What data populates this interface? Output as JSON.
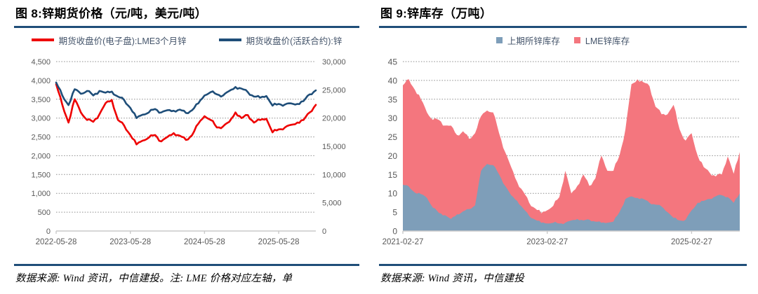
{
  "colors": {
    "accent_rule": "#1F4E79",
    "red_line": "#EE0000",
    "navy_line": "#1F4E79",
    "shfe_area": "#7E9EB9",
    "lme_area": "#F4767E",
    "legend_text": "#44546A",
    "axis_text": "#595959",
    "gridline": "#8C8C8C",
    "axis_line": "#C9C9C9"
  },
  "left_panel": {
    "title": "图 8:锌期货价格（元/吨，美元/吨）",
    "footer": "数据来源: Wind 资讯，中信建投。注: LME 价格对应左轴，单"
  },
  "right_panel": {
    "title": "图 9:锌库存（万吨）",
    "footer": "数据来源: Wind 资讯，中信建投"
  },
  "chart_data": [
    {
      "type": "line",
      "title": "图 8:锌期货价格（元/吨，美元/吨）",
      "x_start": "2022-05-28",
      "x_freq": "monthly",
      "x_tick_labels": [
        "2022-05-28",
        "2023-05-28",
        "2024-05-28",
        "2025-05-28"
      ],
      "x_tick_indices": [
        0,
        12,
        24,
        36
      ],
      "left_axis": {
        "min": 0,
        "max": 4500,
        "step": 500
      },
      "right_axis": {
        "min": 0,
        "max": 30000,
        "step": 5000
      },
      "grid": true,
      "legend_position": "top",
      "series": [
        {
          "name": "期货收盘价(电子盘):LME3个月锌",
          "axis": "left",
          "color": "#EE0000",
          "values": [
            3900,
            3350,
            2880,
            3500,
            3150,
            2950,
            2900,
            3100,
            3400,
            3480,
            2950,
            2800,
            2550,
            2300,
            2400,
            2480,
            2550,
            2380,
            2500,
            2600,
            2530,
            2420,
            2550,
            2850,
            3050,
            2950,
            2750,
            2780,
            2900,
            3150,
            3000,
            3080,
            2880,
            2950,
            2980,
            2620,
            2700,
            2750,
            2820,
            2880,
            2950,
            3150,
            3350
          ]
        },
        {
          "name": "期货收盘价(活跃合约):锌",
          "axis": "right",
          "color": "#1F4E79",
          "values": [
            26300,
            24000,
            22300,
            25100,
            24300,
            24800,
            24000,
            24800,
            24500,
            24700,
            23800,
            23200,
            21800,
            20000,
            20600,
            21000,
            21600,
            21000,
            21400,
            21300,
            21500,
            20900,
            21400,
            22600,
            24000,
            24600,
            24200,
            24000,
            24800,
            25500,
            25200,
            24600,
            23800,
            23600,
            23900,
            22200,
            22500,
            22400,
            22600,
            22500,
            23000,
            24200,
            24900
          ]
        }
      ]
    },
    {
      "type": "area",
      "stacked": true,
      "title": "图 9:锌库存（万吨）",
      "x_start": "2021-02-27",
      "x_freq": "monthly",
      "x_tick_labels": [
        "2021-02-27",
        "2023-02-27",
        "2025-02-27"
      ],
      "x_tick_indices": [
        0,
        24,
        48
      ],
      "y_axis": {
        "min": 0,
        "max": 45,
        "step": 5
      },
      "grid": true,
      "legend_position": "top",
      "series": [
        {
          "name": "上期所锌库存",
          "color": "#7E9EB9",
          "values": [
            12.3,
            11.8,
            10.2,
            9.8,
            8.8,
            6.2,
            4.8,
            4.2,
            3.2,
            4.4,
            5.2,
            5.8,
            6.8,
            16,
            17.8,
            17.5,
            15,
            12,
            9.5,
            8,
            6,
            4,
            3,
            2.2,
            2,
            2.2,
            2,
            2.2,
            2.8,
            3.2,
            2.8,
            3,
            2.5,
            2.2,
            2.2,
            2.5,
            5,
            8.5,
            9.2,
            8.8,
            8.5,
            7.5,
            7,
            6.5,
            5,
            3.5,
            2.8,
            3,
            5.5,
            7.5,
            8,
            8.5,
            9.2,
            9.5,
            9,
            7.5,
            10
          ]
        },
        {
          "name": "LME锌库存",
          "color": "#F4767E",
          "values": [
            26.4,
            28.5,
            27.3,
            25.2,
            22.7,
            23.3,
            24.7,
            23.8,
            24.8,
            21.1,
            21.3,
            18.7,
            19.2,
            14.5,
            14.2,
            14,
            11,
            9,
            7.5,
            5,
            4.5,
            3.5,
            3,
            2.5,
            3.5,
            4.5,
            7,
            13.8,
            7.2,
            8.8,
            12.2,
            9,
            11.5,
            17.8,
            13.8,
            13.5,
            15,
            18.5,
            29.8,
            31.5,
            31,
            31,
            26,
            24.5,
            26,
            30,
            24.2,
            21,
            20.5,
            12.5,
            9,
            7,
            5.3,
            5.5,
            10.8,
            7.7,
            11
          ]
        }
      ]
    }
  ]
}
